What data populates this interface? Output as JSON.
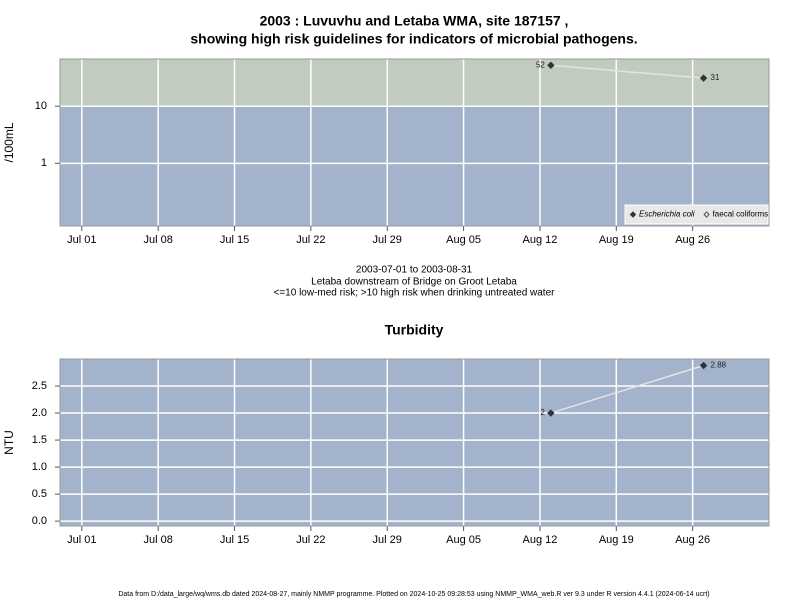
{
  "chart_data": [
    {
      "type": "line",
      "title": [
        "2003 : Luvuvhu and Letaba WMA, site 187157 ,",
        "showing high risk guidelines for indicators of microbial pathogens."
      ],
      "ylabel": "/100mL",
      "log_y": true,
      "ylim": [
        0.08,
        67
      ],
      "yticks": [
        1,
        10
      ],
      "threshold": 10,
      "low_color": "#a2b3cb",
      "high_color": "#c2cbbf",
      "grid": true,
      "legend": "bottom-right",
      "xlim": [
        "2003-06-29",
        "2003-09-02"
      ],
      "xticks": [
        {
          "value": "2003-07-01",
          "label": "Jul 01"
        },
        {
          "value": "2003-07-08",
          "label": "Jul 08"
        },
        {
          "value": "2003-07-15",
          "label": "Jul 15"
        },
        {
          "value": "2003-07-22",
          "label": "Jul 22"
        },
        {
          "value": "2003-07-29",
          "label": "Jul 29"
        },
        {
          "value": "2003-08-05",
          "label": "Aug 05"
        },
        {
          "value": "2003-08-12",
          "label": "Aug 12"
        },
        {
          "value": "2003-08-19",
          "label": "Aug 19"
        },
        {
          "value": "2003-08-26",
          "label": "Aug 26"
        }
      ],
      "x": [
        "2003-08-13",
        "2003-08-27"
      ],
      "series": [
        {
          "name": "Escherichia coli",
          "color": "#333333",
          "line_color": "#e4e4e4",
          "marker": "filled",
          "italic": true,
          "values": [
            52,
            31
          ]
        },
        {
          "name": "faecal coliforms",
          "color": "#ffffff",
          "line_color": "#e4e4e4",
          "marker": "open",
          "values": [
            null,
            null
          ]
        }
      ],
      "caption": [
        "2003-07-01 to 2003-08-31",
        "Letaba downstream of Bridge on Groot Letaba",
        "<=10 low-med risk; >10 high risk when drinking untreated water"
      ]
    },
    {
      "type": "line",
      "title": [
        "Turbidity"
      ],
      "ylabel": "NTU",
      "log_y": false,
      "ylim": [
        -0.09,
        3.0
      ],
      "yticks": [
        {
          "value": 0,
          "label": "0.0"
        },
        0.5,
        {
          "value": 1,
          "label": "1.0"
        },
        1.5,
        {
          "value": 2,
          "label": "2.0"
        },
        2.5
      ],
      "low_color": "#a2b3cb",
      "grid": true,
      "xlim": [
        "2003-06-29",
        "2003-09-02"
      ],
      "xticks": [
        {
          "value": "2003-07-01",
          "label": "Jul 01"
        },
        {
          "value": "2003-07-08",
          "label": "Jul 08"
        },
        {
          "value": "2003-07-15",
          "label": "Jul 15"
        },
        {
          "value": "2003-07-22",
          "label": "Jul 22"
        },
        {
          "value": "2003-07-29",
          "label": "Jul 29"
        },
        {
          "value": "2003-08-05",
          "label": "Aug 05"
        },
        {
          "value": "2003-08-12",
          "label": "Aug 12"
        },
        {
          "value": "2003-08-19",
          "label": "Aug 19"
        },
        {
          "value": "2003-08-26",
          "label": "Aug 26"
        }
      ],
      "x": [
        "2003-08-13",
        "2003-08-27"
      ],
      "series": [
        {
          "name": "Turbidity",
          "color": "#333333",
          "line_color": "#e4e4e4",
          "marker": "filled",
          "values": [
            2,
            2.88
          ]
        }
      ]
    }
  ],
  "footer": "Data from D:/data_large/wq/wms.db dated 2024-08-27, mainly NMMP programme. Plotted on 2024-10-25 09:28:53 using NMMP_WMA_web.R ver 9.3 under R version 4.4.1 (2024-06-14 ucrt)"
}
